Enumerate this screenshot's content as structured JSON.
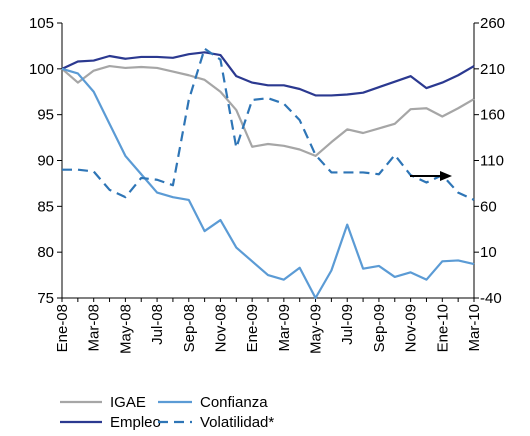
{
  "chart_data": {
    "type": "line",
    "categories": [
      "Ene-08",
      null,
      "Mar-08",
      null,
      "May-08",
      null,
      "Jul-08",
      null,
      "Sep-08",
      null,
      "Nov-08",
      null,
      "Ene-09",
      null,
      "Mar-09",
      null,
      "May-09",
      null,
      "Jul-09",
      null,
      "Sep-09",
      null,
      "Nov-09",
      null,
      "Ene-10",
      null,
      "Mar-10"
    ],
    "ylim": [
      75,
      105
    ],
    "yticks": [
      75,
      80,
      85,
      90,
      95,
      100,
      105
    ],
    "y2lim": [
      -40,
      260
    ],
    "y2ticks": [
      -40,
      10,
      60,
      110,
      160,
      210,
      260
    ],
    "series": [
      {
        "name": "IGAE",
        "color": "#a6a6a6",
        "values": [
          100,
          98.5,
          99.8,
          100.3,
          100.1,
          100.2,
          100.1,
          99.7,
          99.3,
          98.8,
          97.5,
          95.5,
          91.5,
          91.8,
          91.6,
          91.2,
          90.5,
          92,
          93.4,
          93,
          93.5,
          94,
          95.6,
          95.7,
          94.8,
          95.7,
          96.7
        ]
      },
      {
        "name": "Empleo",
        "color": "#2b3990",
        "values": [
          100,
          100.8,
          100.9,
          101.4,
          101.1,
          101.3,
          101.3,
          101.2,
          101.6,
          101.8,
          101.5,
          99.2,
          98.5,
          98.2,
          98.2,
          97.8,
          97.1,
          97.1,
          97.2,
          97.4,
          98,
          98.6,
          99.2,
          97.9,
          98.5,
          99.3,
          100.3
        ]
      },
      {
        "name": "Confianza",
        "color": "#5b9bd5",
        "values": [
          100,
          99.5,
          97.5,
          94,
          90.5,
          88.5,
          86.5,
          86,
          85.7,
          82.3,
          83.5,
          80.5,
          79,
          77.5,
          77,
          78.3,
          75,
          78,
          83,
          78.2,
          78.5,
          77.3,
          77.8,
          77,
          79,
          79.1,
          78.7
        ]
      },
      {
        "name": "Volatilidad*",
        "color": "#2e75b6",
        "dashed": true,
        "axis": "y2",
        "values": [
          100,
          100,
          98,
          78,
          70,
          91,
          89,
          83,
          176,
          232,
          220,
          124,
          176,
          178,
          172,
          154,
          116,
          97,
          97,
          97,
          95,
          116,
          94,
          86,
          94,
          75,
          67
        ]
      }
    ]
  }
}
